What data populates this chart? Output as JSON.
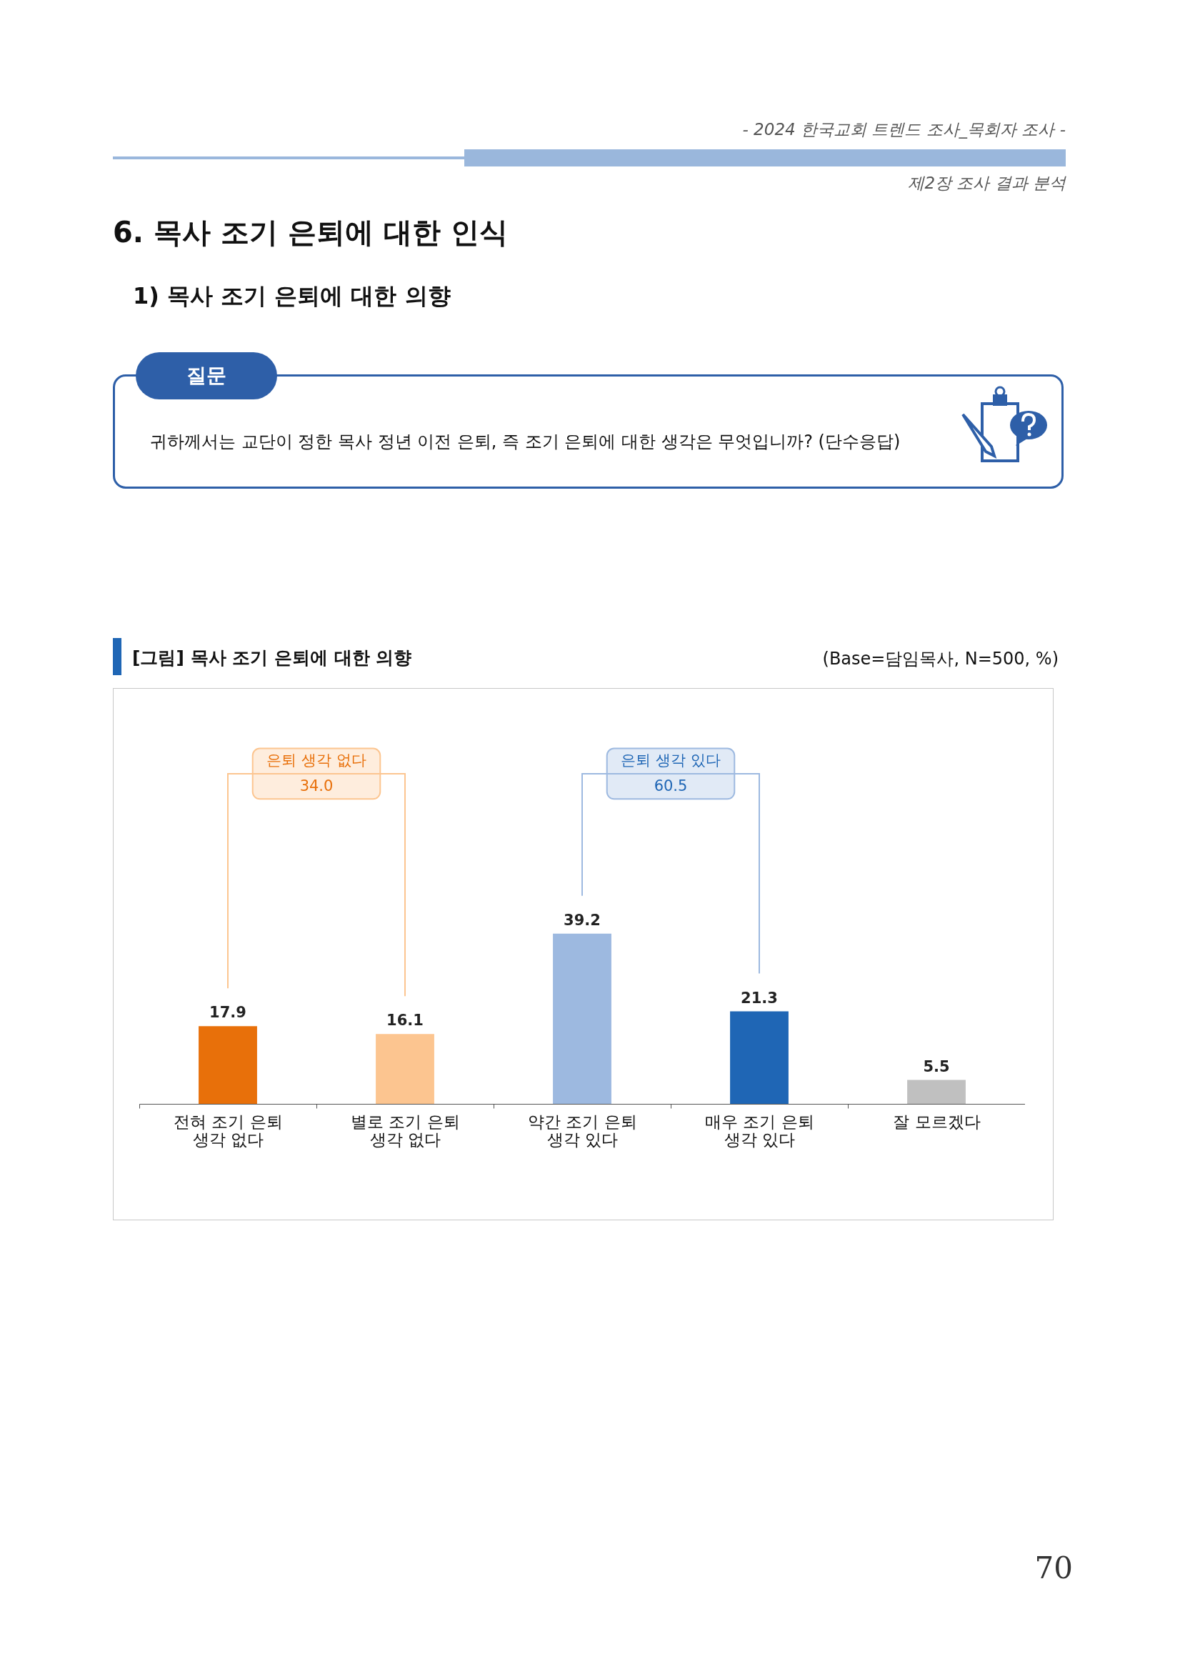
{
  "chart_data": {
    "type": "bar",
    "title": "[그림] 목사 조기 은퇴에 대한 의향",
    "subtitle": "(Base=담임목사, N=500, %)",
    "categories": [
      "전혀 조기 은퇴 생각 없다",
      "별로 조기 은퇴 생각 없다",
      "약간 조기 은퇴 생각 있다",
      "매우 조기 은퇴 생각 있다",
      "잘 모르겠다"
    ],
    "values": [
      17.9,
      16.1,
      39.2,
      21.3,
      5.5
    ],
    "colors": [
      "#e8700a",
      "#fcc590",
      "#9db9e0",
      "#1f66b5",
      "#c0c0c0"
    ],
    "data_labels": true,
    "annotations": [
      "- 2024 한국교회 트렌드 조사_목회자 조사 -",
      "제2장 조사 결과 분석",
      "6. 목사 조기 은퇴에 대한 인식",
      "1) 목사 조기 은퇴에 대한 의향",
      "질문",
      "귀하께서는 교단이 정한 목사 정년 이전 은퇴, 즉 조기 은퇴에 대한 생각은 무엇입니까? (단수응답)",
      "은퇴 생각 없다",
      "34.0",
      "은퇴 생각 있다",
      "60.5",
      "70"
    ]
  }
}
